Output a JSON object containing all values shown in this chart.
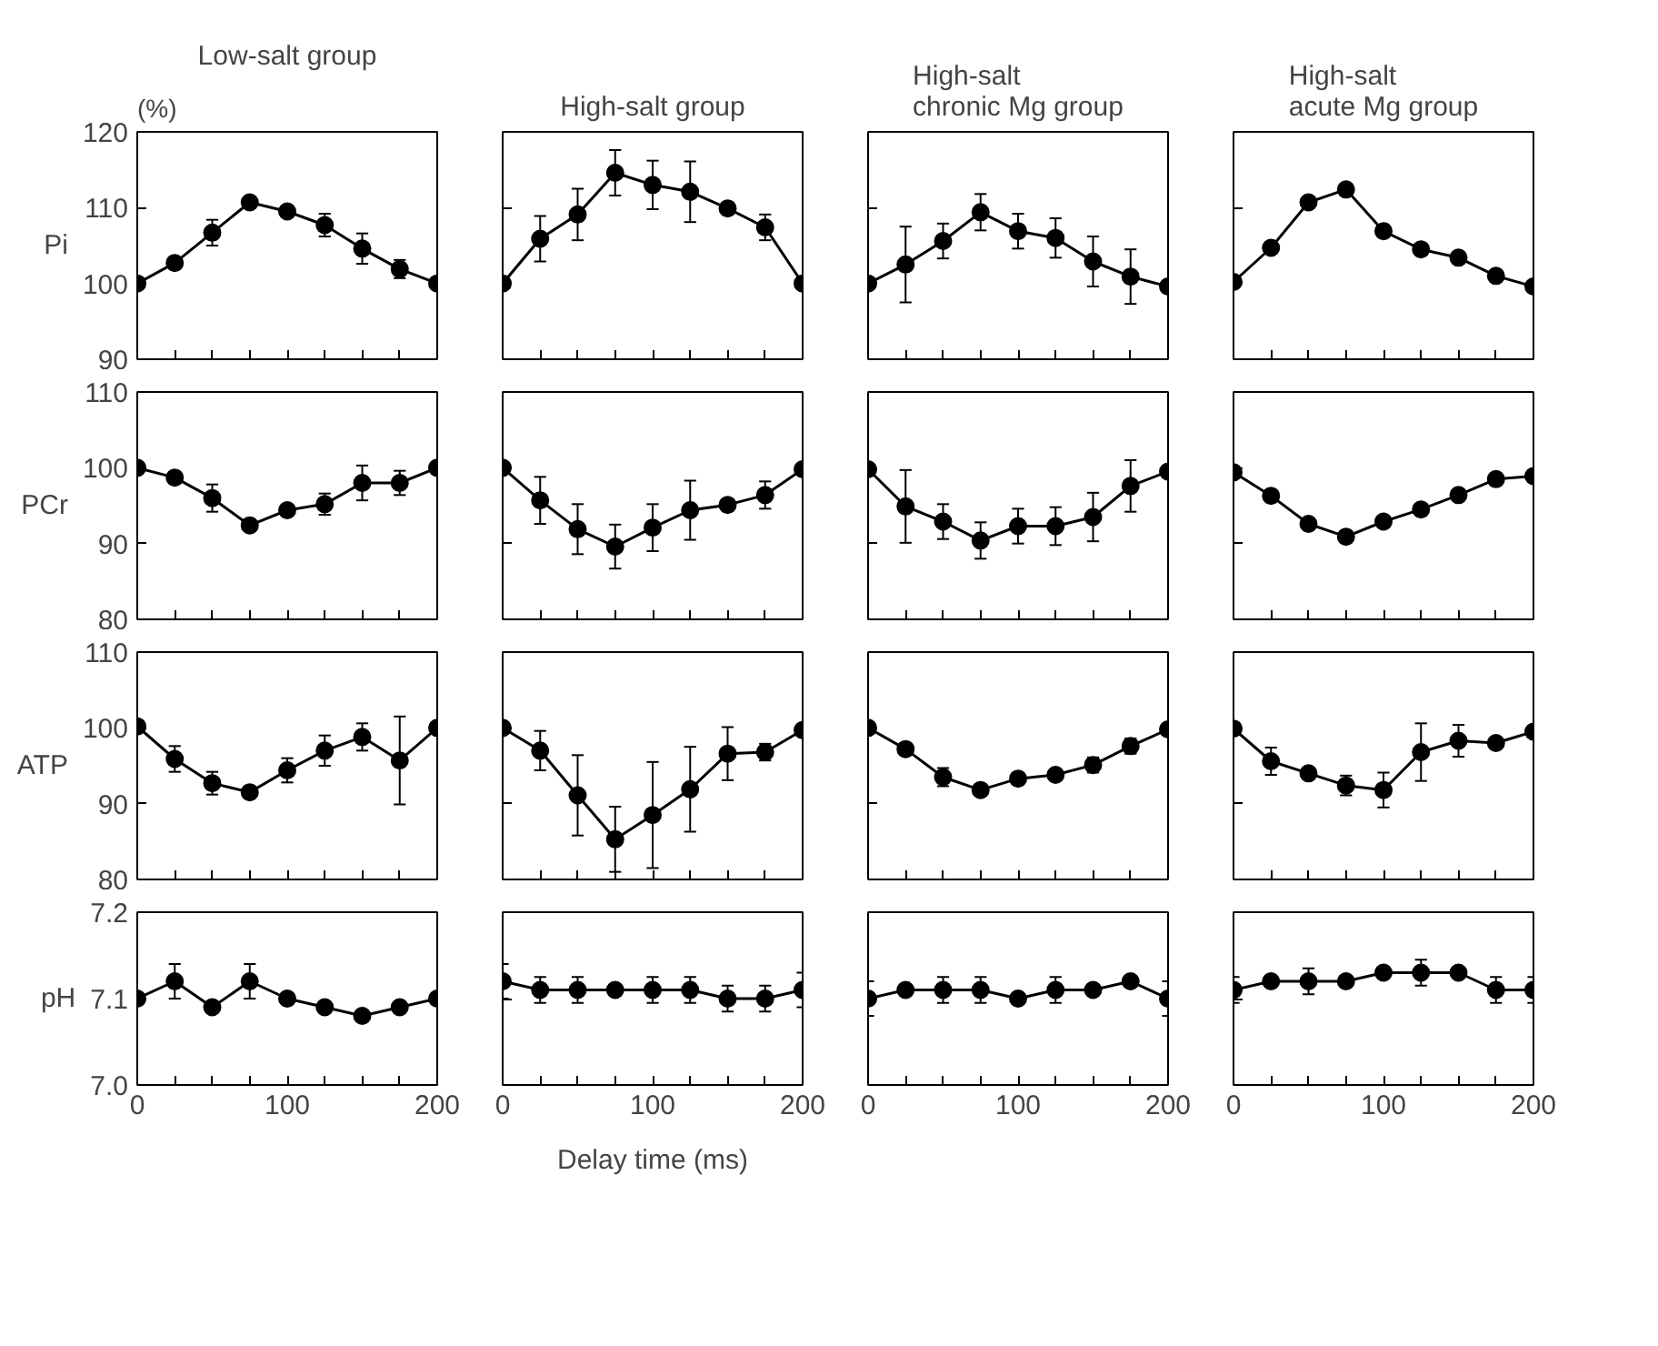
{
  "chart_data": [
    {
      "type": "line",
      "title": "Low-salt group",
      "ylabel": "Pi",
      "annotations": [
        "(%)"
      ],
      "tick_labels": "y",
      "marker": "circle",
      "x": [
        0,
        25,
        50,
        75,
        100,
        125,
        150,
        175,
        200
      ],
      "xlim": [
        0,
        200
      ],
      "ylim": [
        90,
        120
      ],
      "yticks": [
        90,
        100,
        110,
        120
      ],
      "xticks": [
        0,
        {
          "value": 25,
          "label": null
        },
        {
          "value": 50,
          "label": null
        },
        {
          "value": 75,
          "label": null
        },
        100,
        {
          "value": 125,
          "label": null
        },
        {
          "value": 150,
          "label": null
        },
        {
          "value": 175,
          "label": null
        },
        200
      ],
      "series": [
        {
          "color": "#000000",
          "values": [
            100,
            102.7,
            106.7,
            110.7,
            109.5,
            107.7,
            104.6,
            101.9,
            100
          ],
          "errors": [
            null,
            null,
            1.7,
            null,
            0.5,
            1.5,
            2,
            1.2,
            null
          ]
        }
      ]
    },
    {
      "type": "line",
      "title": "High-salt group",
      "tick_labels": false,
      "marker": "circle",
      "x": [
        0,
        25,
        50,
        75,
        100,
        125,
        150,
        175,
        200
      ],
      "xlim": [
        0,
        200
      ],
      "ylim": [
        90,
        120
      ],
      "yticks": [
        90,
        100,
        110,
        120
      ],
      "xticks": [
        0,
        {
          "value": 25,
          "label": null
        },
        {
          "value": 50,
          "label": null
        },
        {
          "value": 75,
          "label": null
        },
        100,
        {
          "value": 125,
          "label": null
        },
        {
          "value": 150,
          "label": null
        },
        {
          "value": 175,
          "label": null
        },
        200
      ],
      "series": [
        {
          "color": "#000000",
          "values": [
            100,
            105.9,
            109.1,
            114.6,
            113,
            112.1,
            109.9,
            107.4,
            100
          ],
          "errors": [
            null,
            3,
            3.4,
            3,
            3.2,
            4,
            null,
            1.7,
            null
          ]
        }
      ]
    },
    {
      "type": "line",
      "title": "High-salt chronic Mg group",
      "tick_labels": false,
      "marker": "circle",
      "x": [
        0,
        25,
        50,
        75,
        100,
        125,
        150,
        175,
        200
      ],
      "xlim": [
        0,
        200
      ],
      "ylim": [
        90,
        120
      ],
      "yticks": [
        90,
        100,
        110,
        120
      ],
      "xticks": [
        0,
        {
          "value": 25,
          "label": null
        },
        {
          "value": 50,
          "label": null
        },
        {
          "value": 75,
          "label": null
        },
        100,
        {
          "value": 125,
          "label": null
        },
        {
          "value": 150,
          "label": null
        },
        {
          "value": 175,
          "label": null
        },
        200
      ],
      "series": [
        {
          "color": "#000000",
          "values": [
            100,
            102.5,
            105.6,
            109.4,
            106.9,
            106,
            102.9,
            100.9,
            99.6
          ],
          "errors": [
            null,
            5,
            2.3,
            2.4,
            2.3,
            2.6,
            3.3,
            3.6,
            null
          ]
        }
      ]
    },
    {
      "type": "line",
      "title": "High-salt acute Mg group",
      "tick_labels": false,
      "marker": "circle",
      "x": [
        0,
        25,
        50,
        75,
        100,
        125,
        150,
        175,
        200
      ],
      "xlim": [
        0,
        200
      ],
      "ylim": [
        90,
        120
      ],
      "yticks": [
        90,
        100,
        110,
        120
      ],
      "xticks": [
        0,
        {
          "value": 25,
          "label": null
        },
        {
          "value": 50,
          "label": null
        },
        {
          "value": 75,
          "label": null
        },
        100,
        {
          "value": 125,
          "label": null
        },
        {
          "value": 150,
          "label": null
        },
        {
          "value": 175,
          "label": null
        },
        200
      ],
      "series": [
        {
          "color": "#000000",
          "values": [
            100.2,
            104.7,
            110.7,
            112.4,
            106.9,
            104.5,
            103.4,
            101,
            99.6
          ]
        }
      ]
    },
    {
      "type": "line",
      "ylabel": "PCr",
      "tick_labels": "y",
      "marker": "circle",
      "x": [
        0,
        25,
        50,
        75,
        100,
        125,
        150,
        175,
        200
      ],
      "xlim": [
        0,
        200
      ],
      "ylim": [
        80,
        110
      ],
      "yticks": [
        80,
        90,
        100,
        110
      ],
      "xticks": [
        0,
        {
          "value": 25,
          "label": null
        },
        {
          "value": 50,
          "label": null
        },
        {
          "value": 75,
          "label": null
        },
        100,
        {
          "value": 125,
          "label": null
        },
        {
          "value": 150,
          "label": null
        },
        {
          "value": 175,
          "label": null
        },
        200
      ],
      "series": [
        {
          "color": "#000000",
          "values": [
            100,
            98.7,
            96,
            92.4,
            94.4,
            95.2,
            98,
            98,
            100
          ],
          "errors": [
            null,
            null,
            1.8,
            null,
            null,
            1.4,
            2.3,
            1.6,
            null
          ]
        }
      ]
    },
    {
      "type": "line",
      "tick_labels": false,
      "marker": "circle",
      "x": [
        0,
        25,
        50,
        75,
        100,
        125,
        150,
        175,
        200
      ],
      "xlim": [
        0,
        200
      ],
      "ylim": [
        80,
        110
      ],
      "yticks": [
        80,
        90,
        100,
        110
      ],
      "xticks": [
        0,
        {
          "value": 25,
          "label": null
        },
        {
          "value": 50,
          "label": null
        },
        {
          "value": 75,
          "label": null
        },
        100,
        {
          "value": 125,
          "label": null
        },
        {
          "value": 150,
          "label": null
        },
        {
          "value": 175,
          "label": null
        },
        200
      ],
      "series": [
        {
          "color": "#000000",
          "values": [
            100,
            95.7,
            91.9,
            89.6,
            92.1,
            94.4,
            95.1,
            96.4,
            99.8
          ],
          "errors": [
            null,
            3.1,
            3.3,
            2.9,
            3.1,
            3.9,
            null,
            1.8,
            null
          ]
        }
      ]
    },
    {
      "type": "line",
      "tick_labels": false,
      "marker": "circle",
      "x": [
        0,
        25,
        50,
        75,
        100,
        125,
        150,
        175,
        200
      ],
      "xlim": [
        0,
        200
      ],
      "ylim": [
        80,
        110
      ],
      "yticks": [
        80,
        90,
        100,
        110
      ],
      "xticks": [
        0,
        {
          "value": 25,
          "label": null
        },
        {
          "value": 50,
          "label": null
        },
        {
          "value": 75,
          "label": null
        },
        100,
        {
          "value": 125,
          "label": null
        },
        {
          "value": 150,
          "label": null
        },
        {
          "value": 175,
          "label": null
        },
        200
      ],
      "series": [
        {
          "color": "#000000",
          "values": [
            99.8,
            94.9,
            92.9,
            90.4,
            92.3,
            92.3,
            93.5,
            97.6,
            99.5
          ],
          "errors": [
            null,
            4.8,
            2.3,
            2.4,
            2.3,
            2.5,
            3.2,
            3.4,
            null
          ]
        }
      ]
    },
    {
      "type": "line",
      "tick_labels": false,
      "marker": "circle",
      "x": [
        0,
        25,
        50,
        75,
        100,
        125,
        150,
        175,
        200
      ],
      "xlim": [
        0,
        200
      ],
      "ylim": [
        80,
        110
      ],
      "yticks": [
        80,
        90,
        100,
        110
      ],
      "xticks": [
        0,
        {
          "value": 25,
          "label": null
        },
        {
          "value": 50,
          "label": null
        },
        {
          "value": 75,
          "label": null
        },
        100,
        {
          "value": 125,
          "label": null
        },
        {
          "value": 150,
          "label": null
        },
        {
          "value": 175,
          "label": null
        },
        200
      ],
      "series": [
        {
          "color": "#000000",
          "values": [
            99.4,
            96.3,
            92.6,
            90.9,
            92.9,
            94.5,
            96.4,
            98.5,
            98.9
          ]
        }
      ]
    },
    {
      "type": "line",
      "ylabel": "ATP",
      "tick_labels": "y",
      "marker": "circle",
      "x": [
        0,
        25,
        50,
        75,
        100,
        125,
        150,
        175,
        200
      ],
      "xlim": [
        0,
        200
      ],
      "ylim": [
        80,
        110
      ],
      "yticks": [
        80,
        90,
        100,
        110
      ],
      "xticks": [
        0,
        {
          "value": 25,
          "label": null
        },
        {
          "value": 50,
          "label": null
        },
        {
          "value": 75,
          "label": null
        },
        100,
        {
          "value": 125,
          "label": null
        },
        {
          "value": 150,
          "label": null
        },
        {
          "value": 175,
          "label": null
        },
        200
      ],
      "series": [
        {
          "color": "#000000",
          "values": [
            100.2,
            95.9,
            92.7,
            91.5,
            94.4,
            97,
            98.8,
            95.7,
            100
          ],
          "errors": [
            null,
            1.7,
            1.5,
            null,
            1.6,
            2,
            1.8,
            5.8,
            null
          ]
        }
      ]
    },
    {
      "type": "line",
      "tick_labels": false,
      "marker": "circle",
      "x": [
        0,
        25,
        50,
        75,
        100,
        125,
        150,
        175,
        200
      ],
      "xlim": [
        0,
        200
      ],
      "ylim": [
        80,
        110
      ],
      "yticks": [
        80,
        90,
        100,
        110
      ],
      "xticks": [
        0,
        {
          "value": 25,
          "label": null
        },
        {
          "value": 50,
          "label": null
        },
        {
          "value": 75,
          "label": null
        },
        100,
        {
          "value": 125,
          "label": null
        },
        {
          "value": 150,
          "label": null
        },
        {
          "value": 175,
          "label": null
        },
        200
      ],
      "series": [
        {
          "color": "#000000",
          "values": [
            100,
            97,
            91.1,
            85.3,
            88.5,
            91.9,
            96.6,
            96.8,
            99.7
          ],
          "errors": [
            null,
            2.6,
            5.3,
            4.3,
            7,
            5.6,
            3.5,
            1.1,
            null
          ]
        }
      ]
    },
    {
      "type": "line",
      "tick_labels": false,
      "marker": "circle",
      "x": [
        0,
        25,
        50,
        75,
        100,
        125,
        150,
        175,
        200
      ],
      "xlim": [
        0,
        200
      ],
      "ylim": [
        80,
        110
      ],
      "yticks": [
        80,
        90,
        100,
        110
      ],
      "xticks": [
        0,
        {
          "value": 25,
          "label": null
        },
        {
          "value": 50,
          "label": null
        },
        {
          "value": 75,
          "label": null
        },
        100,
        {
          "value": 125,
          "label": null
        },
        {
          "value": 150,
          "label": null
        },
        {
          "value": 175,
          "label": null
        },
        200
      ],
      "series": [
        {
          "color": "#000000",
          "values": [
            100,
            97.2,
            93.5,
            91.8,
            93.3,
            93.8,
            95.1,
            97.6,
            99.8
          ],
          "errors": [
            null,
            0.8,
            1.2,
            0.6,
            null,
            null,
            1,
            1,
            null
          ]
        }
      ]
    },
    {
      "type": "line",
      "tick_labels": false,
      "marker": "circle",
      "x": [
        0,
        25,
        50,
        75,
        100,
        125,
        150,
        175,
        200
      ],
      "xlim": [
        0,
        200
      ],
      "ylim": [
        80,
        110
      ],
      "yticks": [
        80,
        90,
        100,
        110
      ],
      "xticks": [
        0,
        {
          "value": 25,
          "label": null
        },
        {
          "value": 50,
          "label": null
        },
        {
          "value": 75,
          "label": null
        },
        100,
        {
          "value": 125,
          "label": null
        },
        {
          "value": 150,
          "label": null
        },
        {
          "value": 175,
          "label": null
        },
        200
      ],
      "series": [
        {
          "color": "#000000",
          "values": [
            99.9,
            95.6,
            94,
            92.4,
            91.8,
            96.8,
            98.3,
            98,
            99.5
          ],
          "errors": [
            null,
            1.8,
            null,
            1.3,
            2.3,
            3.8,
            2.1,
            null,
            null
          ]
        }
      ]
    },
    {
      "type": "line",
      "ylabel": "pH",
      "marker": "circle",
      "x": [
        0,
        25,
        50,
        75,
        100,
        125,
        150,
        175,
        200
      ],
      "xlim": [
        0,
        200
      ],
      "ylim": [
        7.0,
        7.2
      ],
      "yticks": [
        {
          "value": 7.0,
          "label": "7.0"
        },
        {
          "value": 7.1,
          "label": "7.1"
        },
        {
          "value": 7.2,
          "label": "7.2"
        }
      ],
      "xticks": [
        0,
        {
          "value": 25,
          "label": null
        },
        {
          "value": 50,
          "label": null
        },
        {
          "value": 75,
          "label": null
        },
        100,
        {
          "value": 125,
          "label": null
        },
        {
          "value": 150,
          "label": null
        },
        {
          "value": 175,
          "label": null
        },
        200
      ],
      "series": [
        {
          "color": "#000000",
          "values": [
            7.1,
            7.12,
            7.09,
            7.12,
            7.1,
            7.09,
            7.08,
            7.09,
            7.1
          ],
          "errors": [
            null,
            0.02,
            null,
            0.02,
            null,
            null,
            null,
            null,
            null
          ]
        }
      ]
    },
    {
      "type": "line",
      "xlabel": "Delay time (ms)",
      "tick_labels": "x",
      "marker": "circle",
      "x": [
        0,
        25,
        50,
        75,
        100,
        125,
        150,
        175,
        200
      ],
      "xlim": [
        0,
        200
      ],
      "ylim": [
        7.0,
        7.2
      ],
      "yticks": [
        7.0,
        7.1,
        7.2
      ],
      "xticks": [
        0,
        {
          "value": 25,
          "label": null
        },
        {
          "value": 50,
          "label": null
        },
        {
          "value": 75,
          "label": null
        },
        100,
        {
          "value": 125,
          "label": null
        },
        {
          "value": 150,
          "label": null
        },
        {
          "value": 175,
          "label": null
        },
        200
      ],
      "series": [
        {
          "color": "#000000",
          "values": [
            7.12,
            7.11,
            7.11,
            7.11,
            7.11,
            7.11,
            7.1,
            7.1,
            7.11
          ],
          "errors": [
            0.02,
            0.015,
            0.015,
            null,
            0.015,
            0.015,
            0.015,
            0.015,
            0.02
          ]
        }
      ]
    },
    {
      "type": "line",
      "tick_labels": "x",
      "marker": "circle",
      "x": [
        0,
        25,
        50,
        75,
        100,
        125,
        150,
        175,
        200
      ],
      "xlim": [
        0,
        200
      ],
      "ylim": [
        7.0,
        7.2
      ],
      "yticks": [
        7.0,
        7.1,
        7.2
      ],
      "xticks": [
        0,
        {
          "value": 25,
          "label": null
        },
        {
          "value": 50,
          "label": null
        },
        {
          "value": 75,
          "label": null
        },
        100,
        {
          "value": 125,
          "label": null
        },
        {
          "value": 150,
          "label": null
        },
        {
          "value": 175,
          "label": null
        },
        200
      ],
      "series": [
        {
          "color": "#000000",
          "values": [
            7.1,
            7.11,
            7.11,
            7.11,
            7.1,
            7.11,
            7.11,
            7.12,
            7.1
          ],
          "errors": [
            0.02,
            null,
            0.015,
            0.015,
            null,
            0.015,
            null,
            null,
            0.02
          ]
        }
      ]
    },
    {
      "type": "line",
      "tick_labels": "x",
      "marker": "circle",
      "x": [
        0,
        25,
        50,
        75,
        100,
        125,
        150,
        175,
        200
      ],
      "xlim": [
        0,
        200
      ],
      "ylim": [
        7.0,
        7.2
      ],
      "yticks": [
        7.0,
        7.1,
        7.2
      ],
      "xticks": [
        0,
        {
          "value": 25,
          "label": null
        },
        {
          "value": 50,
          "label": null
        },
        {
          "value": 75,
          "label": null
        },
        100,
        {
          "value": 125,
          "label": null
        },
        {
          "value": 150,
          "label": null
        },
        {
          "value": 175,
          "label": null
        },
        200
      ],
      "series": [
        {
          "color": "#000000",
          "values": [
            7.11,
            7.12,
            7.12,
            7.12,
            7.13,
            7.13,
            7.13,
            7.11,
            7.11
          ],
          "errors": [
            0.015,
            null,
            0.015,
            null,
            null,
            0.015,
            null,
            0.015,
            0.015
          ]
        }
      ]
    }
  ]
}
